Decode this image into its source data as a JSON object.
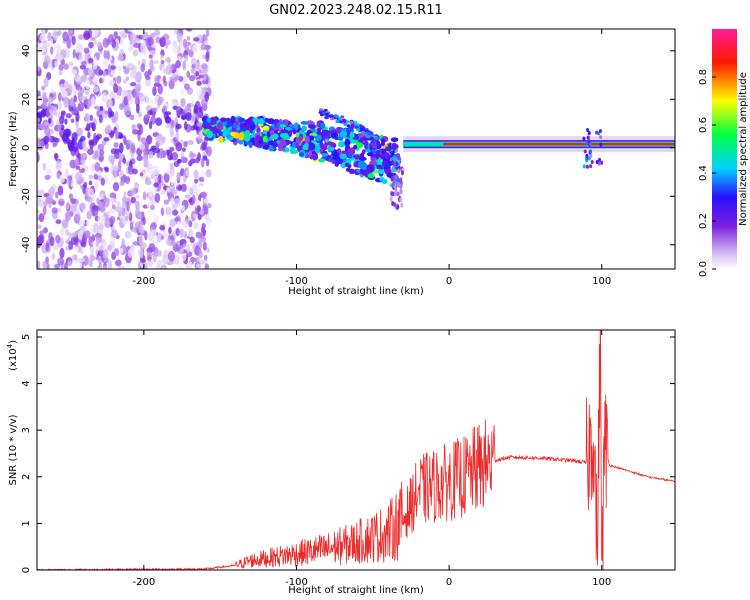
{
  "figure_title": "GN02.2023.248.02.15.R11",
  "colors": {
    "snr_line": "#ee2b2b",
    "axis": "#000000"
  },
  "chart_data": [
    {
      "type": "heatmap",
      "title": "GN02.2023.248.02.15.R11",
      "xlabel": "Height of straight line (km)",
      "ylabel": "Frequency (Hz)",
      "xlim": [
        -270,
        148
      ],
      "ylim": [
        -50,
        49
      ],
      "x_ticks": [
        {
          "value": -200,
          "label": "-200"
        },
        {
          "value": -100,
          "label": "-100"
        },
        {
          "value": 0,
          "label": "0"
        },
        {
          "value": 100,
          "label": "100"
        }
      ],
      "y_ticks": [
        {
          "value": -40,
          "label": "-40"
        },
        {
          "value": -20,
          "label": "-20"
        },
        {
          "value": 0,
          "label": "0"
        },
        {
          "value": 20,
          "label": "20"
        },
        {
          "value": 40,
          "label": "40"
        }
      ],
      "colorbar": {
        "label": "Normalized spectral amplitude",
        "range": [
          0,
          1
        ],
        "ticks": [
          {
            "value": 0,
            "label": "0.0"
          },
          {
            "value": 0.2,
            "label": "0.2"
          },
          {
            "value": 0.4,
            "label": "0.4"
          },
          {
            "value": 0.6,
            "label": "0.6"
          },
          {
            "value": 0.8,
            "label": "0.8"
          }
        ],
        "colormap": [
          "#ffffff",
          "#c8a8f0",
          "#7a1fe0",
          "#2a10ff",
          "#00d2ff",
          "#00ff40",
          "#ffff00",
          "#ff1a00",
          "#ff1a9a"
        ]
      },
      "features": [
        {
          "description_key": "noise",
          "x_range": [
            -270,
            -157
          ],
          "freq_range": [
            -50,
            49
          ],
          "amplitude": 0.1
        },
        {
          "description_key": "descending_band",
          "points": [
            [
              -160,
              8
            ],
            [
              -120,
              6
            ],
            [
              -80,
              2
            ],
            [
              -50,
              -4
            ],
            [
              -33,
              -7
            ]
          ],
          "amplitude": 0.35
        },
        {
          "description_key": "branch",
          "points": [
            [
              -85,
              15
            ],
            [
              -60,
              9
            ],
            [
              -45,
              2
            ]
          ],
          "amplitude": 0.3
        },
        {
          "description_key": "tone_line",
          "x_range": [
            -30,
            148
          ],
          "freq": 1.5,
          "amplitude": 0.9
        }
      ]
    },
    {
      "type": "line",
      "xlabel": "Height of straight line (km)",
      "ylabel": "SNR (10 * v/v)",
      "y_multiplier_label": "(x10",
      "y_multiplier_exp": "4",
      "xlim": [
        -270,
        148
      ],
      "ylim": [
        0,
        5.15
      ],
      "x_ticks": [
        {
          "value": -200,
          "label": "-200"
        },
        {
          "value": -100,
          "label": "-100"
        },
        {
          "value": 0,
          "label": "0"
        },
        {
          "value": 100,
          "label": "100"
        }
      ],
      "y_ticks": [
        {
          "value": 0,
          "label": "0"
        },
        {
          "value": 1,
          "label": "1"
        },
        {
          "value": 2,
          "label": "2"
        },
        {
          "value": 3,
          "label": "3"
        },
        {
          "value": 4,
          "label": "4"
        },
        {
          "value": 5,
          "label": "5"
        }
      ],
      "series": [
        {
          "x": [
            -270,
            -160,
            -140,
            -130,
            -120,
            -100,
            -80,
            -60,
            -40,
            -30,
            -20,
            -10,
            0,
            10,
            20,
            30,
            40,
            60,
            80,
            90,
            95,
            97,
            99,
            100,
            102,
            105,
            110,
            120,
            130,
            148
          ],
          "y": [
            0.0,
            0.02,
            0.1,
            0.2,
            0.25,
            0.35,
            0.45,
            0.6,
            0.8,
            1.1,
            1.7,
            1.8,
            1.9,
            2.0,
            2.2,
            2.35,
            2.42,
            2.4,
            2.35,
            2.3,
            3.0,
            0.3,
            5.0,
            0.2,
            2.7,
            2.25,
            2.2,
            2.1,
            2.0,
            1.9
          ]
        }
      ]
    }
  ]
}
